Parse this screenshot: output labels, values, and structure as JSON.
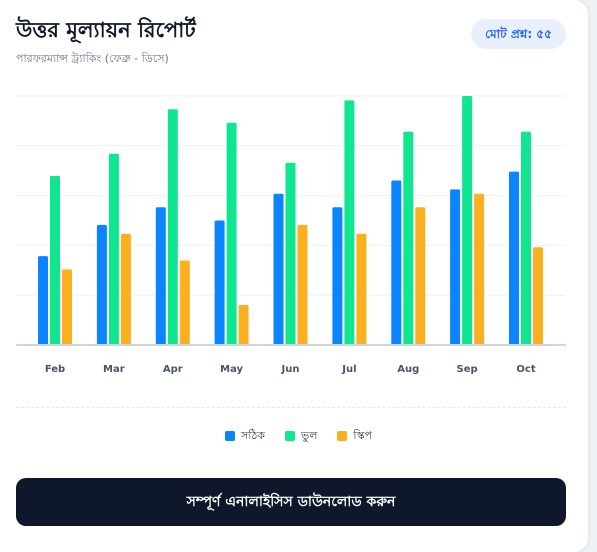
{
  "header": {
    "title": "উত্তর মূল্যায়ন রিপোর্ট",
    "subtitle": "পারফরম্যান্স ট্র্যাকিং (ফেব্রু - ডিসে)",
    "badge": "মোট প্রশ্ন: ৫৫"
  },
  "chart_data": {
    "type": "bar",
    "categories": [
      "Feb",
      "Mar",
      "Apr",
      "May",
      "Jun",
      "Jul",
      "Aug",
      "Sep",
      "Oct"
    ],
    "series": [
      {
        "name": "সঠিক",
        "color": "#0a84ff",
        "values": [
          20,
          27,
          31,
          28,
          34,
          31,
          37,
          35,
          39
        ]
      },
      {
        "name": "ভুল",
        "color": "#10e68f",
        "values": [
          38,
          43,
          53,
          50,
          41,
          55,
          48,
          56,
          48
        ]
      },
      {
        "name": "স্কিপ",
        "color": "#fbb021",
        "values": [
          17,
          25,
          19,
          9,
          27,
          25,
          31,
          34,
          22
        ]
      }
    ],
    "ylim": [
      0,
      56
    ],
    "grid": true,
    "legend_position": "bottom"
  },
  "actions": {
    "download_label": "সম্পূর্ণ এনালাইসিস ডাউনলোড করুন"
  }
}
